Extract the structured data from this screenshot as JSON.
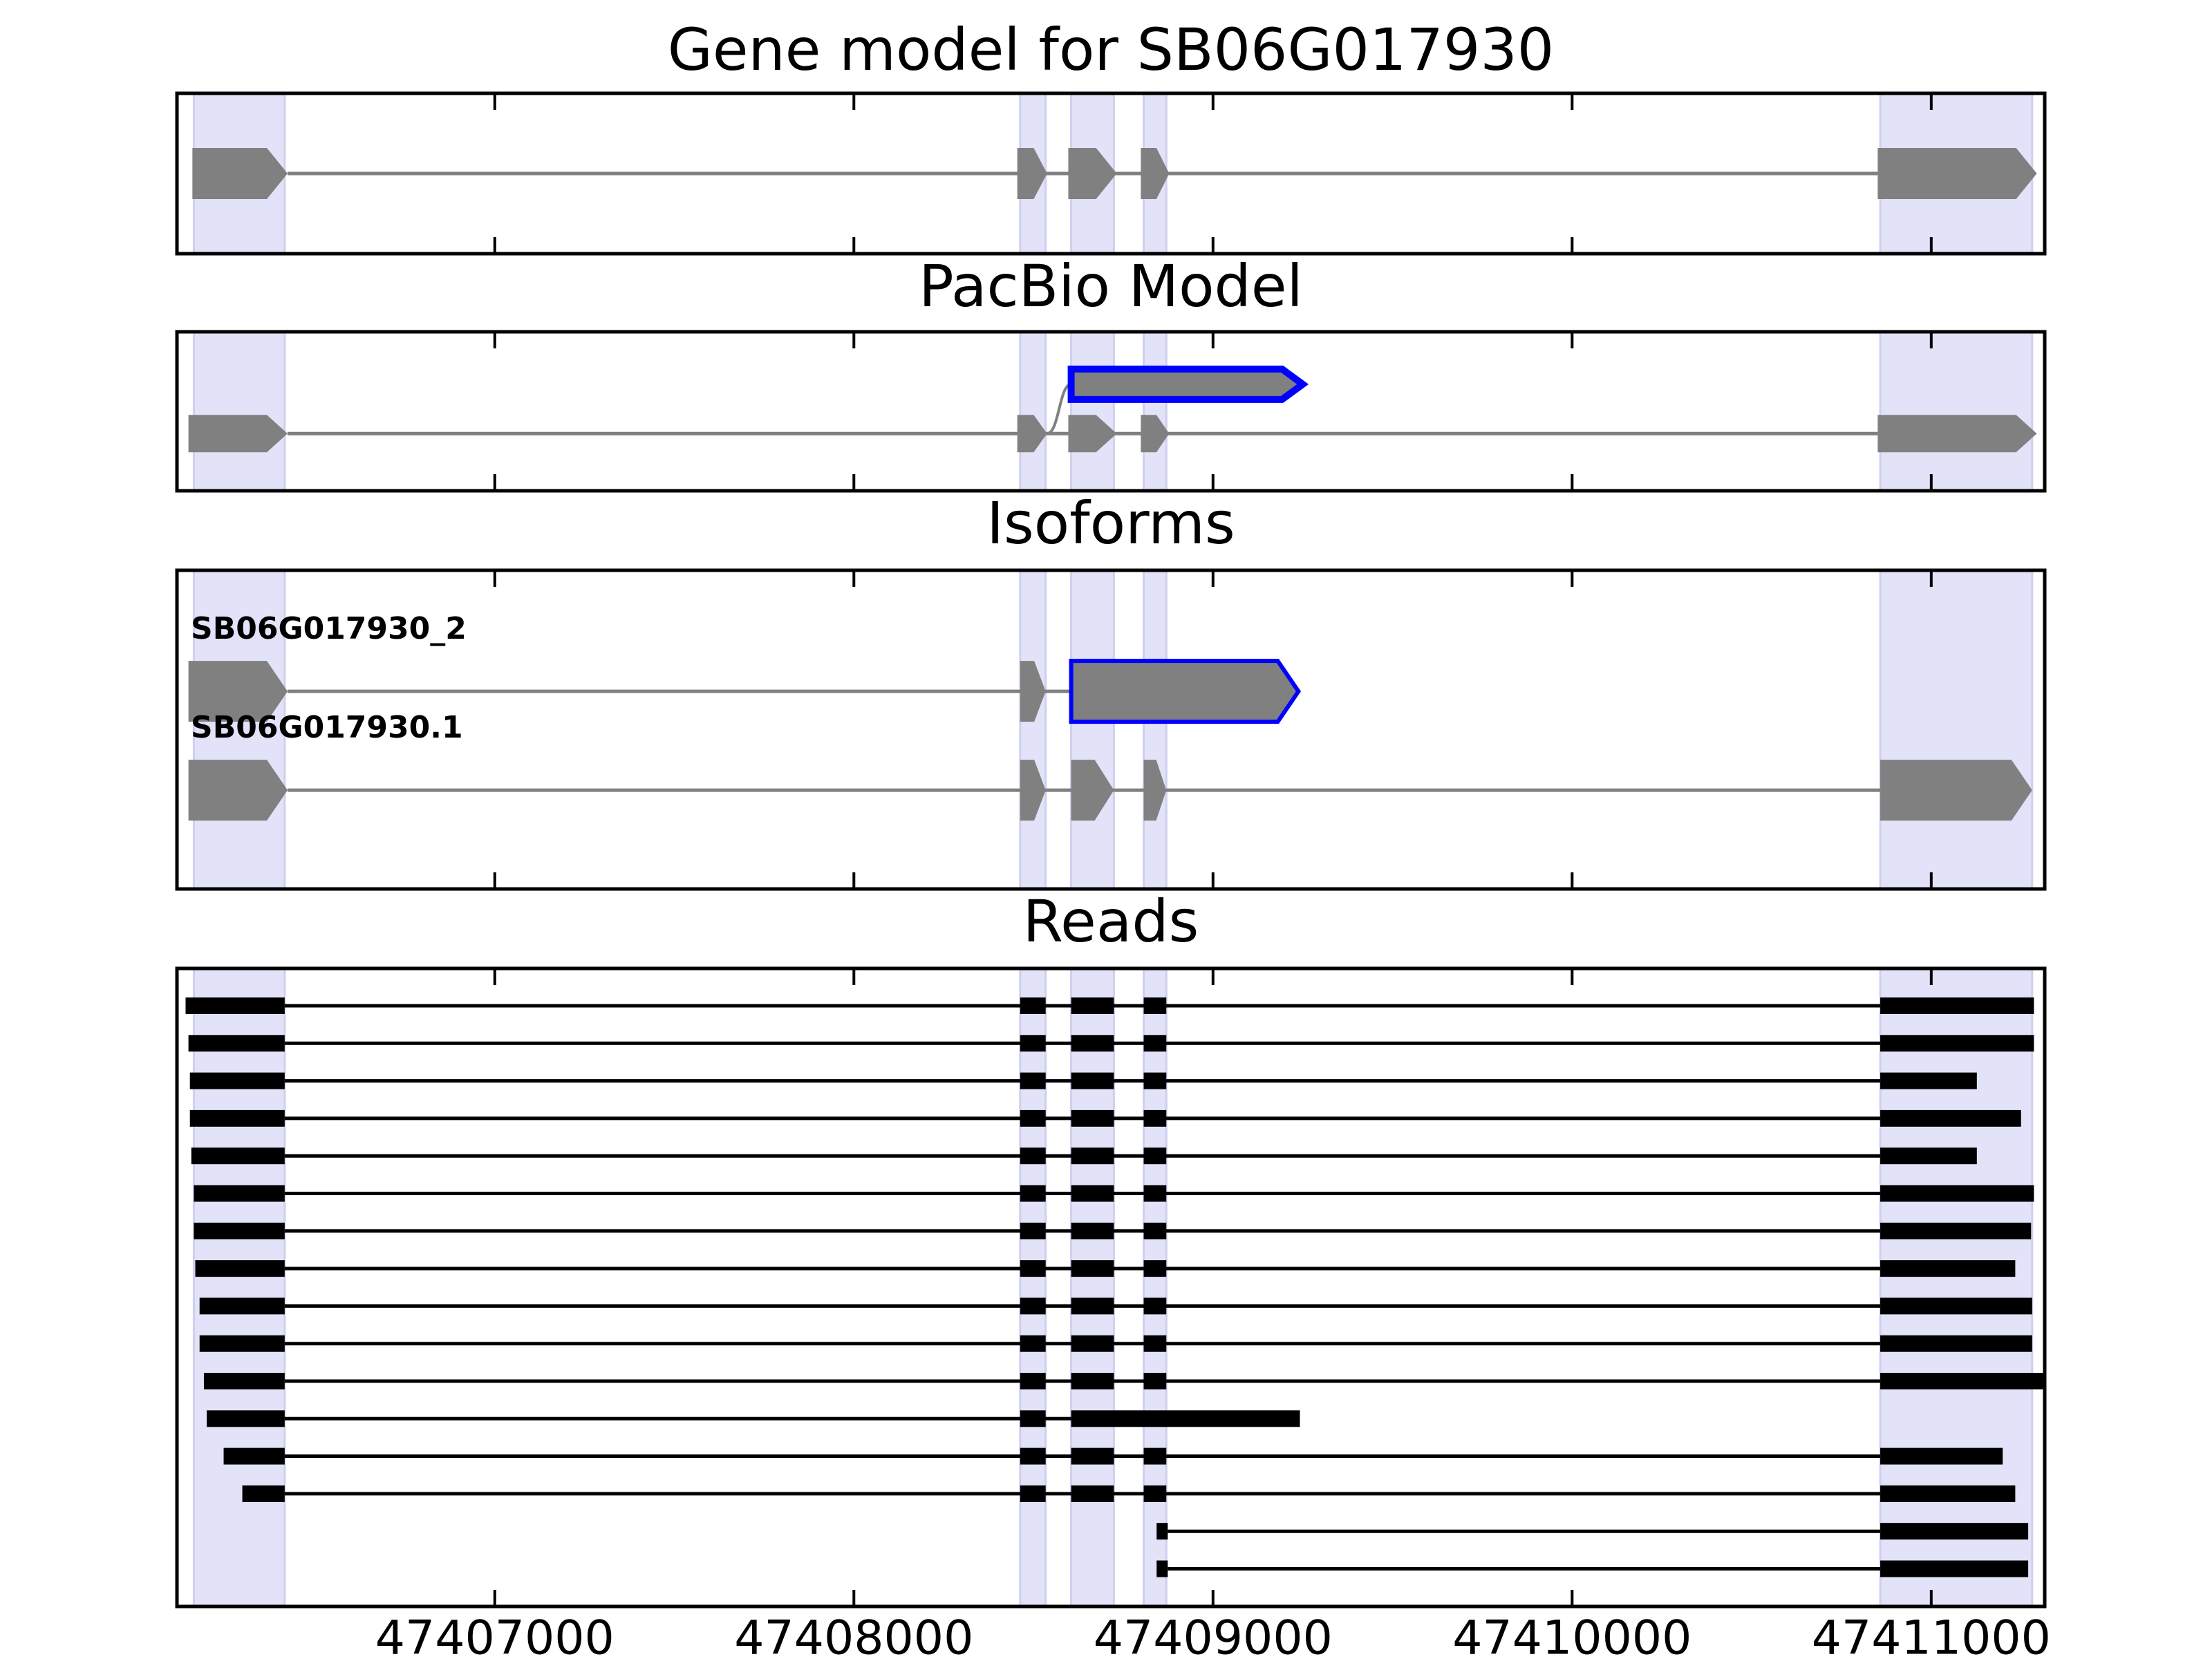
{
  "chart_data": {
    "type": "gene-tracks",
    "xlim": [
      47406115,
      47411316
    ],
    "xticks": [
      47407000,
      47408000,
      47409000,
      47410000,
      47411000
    ],
    "highlight_color": "#e2e2f9",
    "highlights": [
      [
        47406162,
        47406415
      ],
      [
        47408463,
        47408534
      ],
      [
        47408605,
        47408724
      ],
      [
        47408807,
        47408870
      ],
      [
        47410858,
        47411281
      ]
    ],
    "panels": [
      {
        "title": "Gene model for SB06G017930",
        "style": "model",
        "color": "#808080",
        "tracks": [
          {
            "exons": [
              [
                47406158,
                47406423
              ],
              [
                47408455,
                47408538
              ],
              [
                47408597,
                47408732
              ],
              [
                47408799,
                47408878
              ],
              [
                47410851,
                47411294
              ]
            ]
          }
        ]
      },
      {
        "title": "PacBio Model",
        "style": "model",
        "color": "#808080",
        "tracks": [
          {
            "exons": [
              [
                47406147,
                47406423
              ],
              [
                47408455,
                47408538
              ],
              [
                47408597,
                47408732
              ],
              [
                47408799,
                47408878
              ],
              [
                47410851,
                47411294
              ]
            ]
          },
          {
            "exons": [
              [
                47408605,
                47409250
              ]
            ],
            "outline_color": "#0000ff",
            "outlined_exons": [
              0
            ]
          }
        ]
      },
      {
        "title": "Isoforms",
        "style": "model",
        "color": "#808080",
        "tracks": [
          {
            "name": "SB06G017930_2",
            "exons": [
              [
                47406147,
                47406423
              ],
              [
                47408463,
                47408534
              ],
              [
                47408605,
                47409238
              ]
            ],
            "outline_color": "#0000ff",
            "outlined_exons": [
              2
            ]
          },
          {
            "name": "SB06G017930.1",
            "exons": [
              [
                47406147,
                47406423
              ],
              [
                47408463,
                47408534
              ],
              [
                47408605,
                47408724
              ],
              [
                47408807,
                47408870
              ],
              [
                47410858,
                47411281
              ]
            ]
          }
        ]
      },
      {
        "title": "Reads",
        "style": "reads",
        "color": "#000000",
        "tracks": [
          {
            "exons": [
              [
                47406139,
                47406415
              ],
              [
                47408463,
                47408534
              ],
              [
                47408605,
                47408724
              ],
              [
                47408807,
                47408870
              ],
              [
                47410858,
                47411286
              ]
            ]
          },
          {
            "exons": [
              [
                47406147,
                47406415
              ],
              [
                47408463,
                47408534
              ],
              [
                47408605,
                47408724
              ],
              [
                47408807,
                47408870
              ],
              [
                47410858,
                47411286
              ]
            ]
          },
          {
            "exons": [
              [
                47406151,
                47406415
              ],
              [
                47408463,
                47408534
              ],
              [
                47408605,
                47408724
              ],
              [
                47408807,
                47408870
              ],
              [
                47410858,
                47411127
              ]
            ]
          },
          {
            "exons": [
              [
                47406151,
                47406415
              ],
              [
                47408463,
                47408534
              ],
              [
                47408605,
                47408724
              ],
              [
                47408807,
                47408870
              ],
              [
                47410858,
                47411250
              ]
            ]
          },
          {
            "exons": [
              [
                47406155,
                47406415
              ],
              [
                47408463,
                47408534
              ],
              [
                47408605,
                47408724
              ],
              [
                47408807,
                47408870
              ],
              [
                47410858,
                47411127
              ]
            ]
          },
          {
            "exons": [
              [
                47406162,
                47406415
              ],
              [
                47408463,
                47408534
              ],
              [
                47408605,
                47408724
              ],
              [
                47408807,
                47408870
              ],
              [
                47410858,
                47411286
              ]
            ]
          },
          {
            "exons": [
              [
                47406162,
                47406415
              ],
              [
                47408463,
                47408534
              ],
              [
                47408605,
                47408724
              ],
              [
                47408807,
                47408870
              ],
              [
                47410858,
                47411278
              ]
            ]
          },
          {
            "exons": [
              [
                47406166,
                47406415
              ],
              [
                47408463,
                47408534
              ],
              [
                47408605,
                47408724
              ],
              [
                47408807,
                47408870
              ],
              [
                47410858,
                47411234
              ]
            ]
          },
          {
            "exons": [
              [
                47406178,
                47406415
              ],
              [
                47408463,
                47408534
              ],
              [
                47408605,
                47408724
              ],
              [
                47408807,
                47408870
              ],
              [
                47410858,
                47411281
              ]
            ]
          },
          {
            "exons": [
              [
                47406178,
                47406415
              ],
              [
                47408463,
                47408534
              ],
              [
                47408605,
                47408724
              ],
              [
                47408807,
                47408870
              ],
              [
                47410858,
                47411281
              ]
            ]
          },
          {
            "exons": [
              [
                47406190,
                47406415
              ],
              [
                47408463,
                47408534
              ],
              [
                47408605,
                47408724
              ],
              [
                47408807,
                47408870
              ],
              [
                47410858,
                47411316
              ]
            ]
          },
          {
            "exons": [
              [
                47406198,
                47406415
              ],
              [
                47408463,
                47408534
              ],
              [
                47408605,
                47409242
              ]
            ]
          },
          {
            "exons": [
              [
                47406245,
                47406415
              ],
              [
                47408463,
                47408534
              ],
              [
                47408605,
                47408724
              ],
              [
                47408807,
                47408870
              ],
              [
                47410858,
                47411199
              ]
            ]
          },
          {
            "exons": [
              [
                47406297,
                47406415
              ],
              [
                47408463,
                47408534
              ],
              [
                47408605,
                47408724
              ],
              [
                47408807,
                47408870
              ],
              [
                47410858,
                47411234
              ]
            ]
          },
          {
            "exons": [
              [
                47408843,
                47408874
              ],
              [
                47410858,
                47411270
              ]
            ]
          },
          {
            "exons": [
              [
                47408843,
                47408874
              ],
              [
                47410858,
                47411270
              ]
            ]
          }
        ]
      }
    ]
  }
}
